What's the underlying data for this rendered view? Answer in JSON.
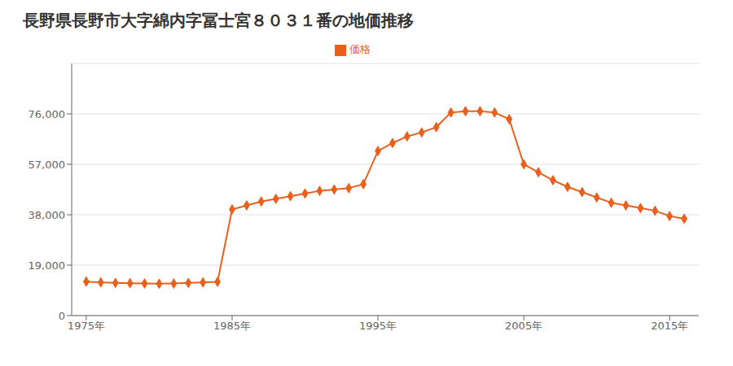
{
  "chart_data": {
    "type": "line",
    "title": "長野県長野市大字綿内字冨士宮８０３１番の地価推移",
    "x": [
      1975,
      1976,
      1977,
      1978,
      1979,
      1980,
      1981,
      1982,
      1983,
      1984,
      1985,
      1986,
      1987,
      1988,
      1989,
      1990,
      1991,
      1992,
      1993,
      1994,
      1995,
      1996,
      1997,
      1998,
      1999,
      2000,
      2001,
      2002,
      2003,
      2004,
      2005,
      2006,
      2007,
      2008,
      2009,
      2010,
      2011,
      2012,
      2013,
      2014,
      2015,
      2016
    ],
    "series": [
      {
        "name": "価格",
        "color": "#E8601C",
        "marker": "diamond",
        "values": [
          12800,
          12500,
          12300,
          12200,
          12100,
          12000,
          12100,
          12300,
          12500,
          12700,
          40000,
          41500,
          43000,
          44000,
          45000,
          46000,
          47000,
          47500,
          48000,
          49500,
          62000,
          65000,
          67500,
          69000,
          71000,
          76500,
          77000,
          77000,
          76500,
          74000,
          57000,
          54000,
          51000,
          48500,
          46500,
          44500,
          42500,
          41500,
          40500,
          39500,
          37500,
          36500
        ]
      }
    ],
    "xlim": [
      1974,
      2017
    ],
    "xticks": [
      {
        "value": 1975,
        "label": "1975年"
      },
      {
        "value": 1985,
        "label": "1985年"
      },
      {
        "value": 1995,
        "label": "1995年"
      },
      {
        "value": 2005,
        "label": "2005年"
      },
      {
        "value": 2015,
        "label": "2015年"
      }
    ],
    "ylim": [
      0,
      95000
    ],
    "yticks": [
      0,
      {
        "value": 19000,
        "label": "19,000"
      },
      {
        "value": 38000,
        "label": "38,000"
      },
      {
        "value": 57000,
        "label": "57,000"
      },
      {
        "value": 76000,
        "label": "76,000"
      }
    ],
    "grid": true,
    "legend": "top"
  }
}
